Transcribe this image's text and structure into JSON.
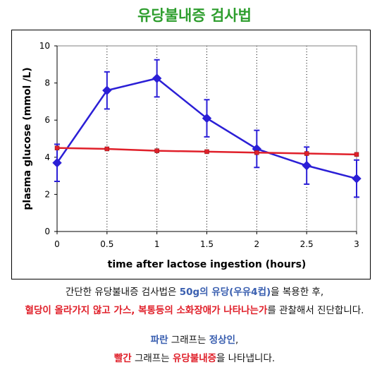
{
  "title": "유당불내증 검사법",
  "chart_data": {
    "type": "line",
    "xlabel": "time after lactose ingestion (hours)",
    "ylabel": "plasma glucose (mmol /L)",
    "xlim": [
      0,
      3
    ],
    "ylim": [
      0,
      10
    ],
    "x_ticks": [
      "0",
      "0.5",
      "1",
      "1.5",
      "2",
      "2.5",
      "3"
    ],
    "y_ticks": [
      "0",
      "2",
      "4",
      "6",
      "8",
      "10"
    ],
    "grid": "dotted",
    "series": [
      {
        "color": "#2b1fd6",
        "marker": "diamond",
        "x": [
          0,
          0.5,
          1,
          1.5,
          2,
          2.5,
          3
        ],
        "values": [
          3.7,
          7.6,
          8.25,
          6.1,
          4.45,
          3.55,
          2.85
        ],
        "error": [
          1.0,
          1.0,
          1.0,
          1.0,
          1.0,
          1.0,
          1.0
        ]
      },
      {
        "color": "#e0202a",
        "marker": "square",
        "x": [
          0,
          0.5,
          1,
          1.5,
          2,
          2.5,
          3
        ],
        "values": [
          4.5,
          4.45,
          4.35,
          4.3,
          4.25,
          4.2,
          4.15
        ]
      }
    ]
  },
  "caption": {
    "line1_a": "간단한 유당불내증 검사법은 ",
    "line1_b": "50g의 유당(우유4컵)",
    "line1_c": "을 복용한 후,",
    "line2_a": "혈당이 올라가지 않고 가스, 복통등의 소화장애가 나타나는가",
    "line2_b": "를 관찰해서 진단합니다.",
    "line3_a": "파란",
    "line3_b": " 그래프는 ",
    "line3_c": "정상인",
    "line3_d": ",",
    "line4_a": "빨간",
    "line4_b": " 그래프는 ",
    "line4_c": "유당불내증",
    "line4_d": "을 나타냅니다."
  }
}
